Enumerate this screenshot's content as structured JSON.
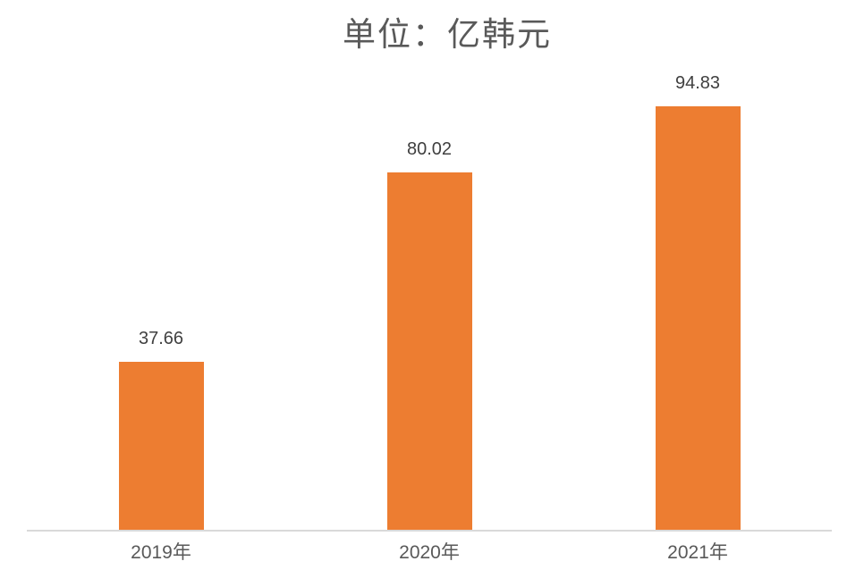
{
  "title": "单位：亿韩元",
  "chart_data": {
    "type": "bar",
    "title": "单位：亿韩元",
    "unit": "亿韩元",
    "categories": [
      "2019年",
      "2020年",
      "2021年"
    ],
    "values": [
      37.66,
      80.02,
      94.83
    ],
    "value_labels": [
      "37.66",
      "80.02",
      "94.83"
    ],
    "xlabel": "",
    "ylabel": "",
    "ylim": [
      0,
      100
    ],
    "grid": false,
    "legend": false,
    "data_labels_visible": true,
    "colors": {
      "bar": "#ED7D31",
      "title_text": "#595959",
      "value_label_text": "#404040",
      "axis_label_text": "#595959",
      "axis_line": "#D9D9D9",
      "background": "#FFFFFF"
    }
  }
}
